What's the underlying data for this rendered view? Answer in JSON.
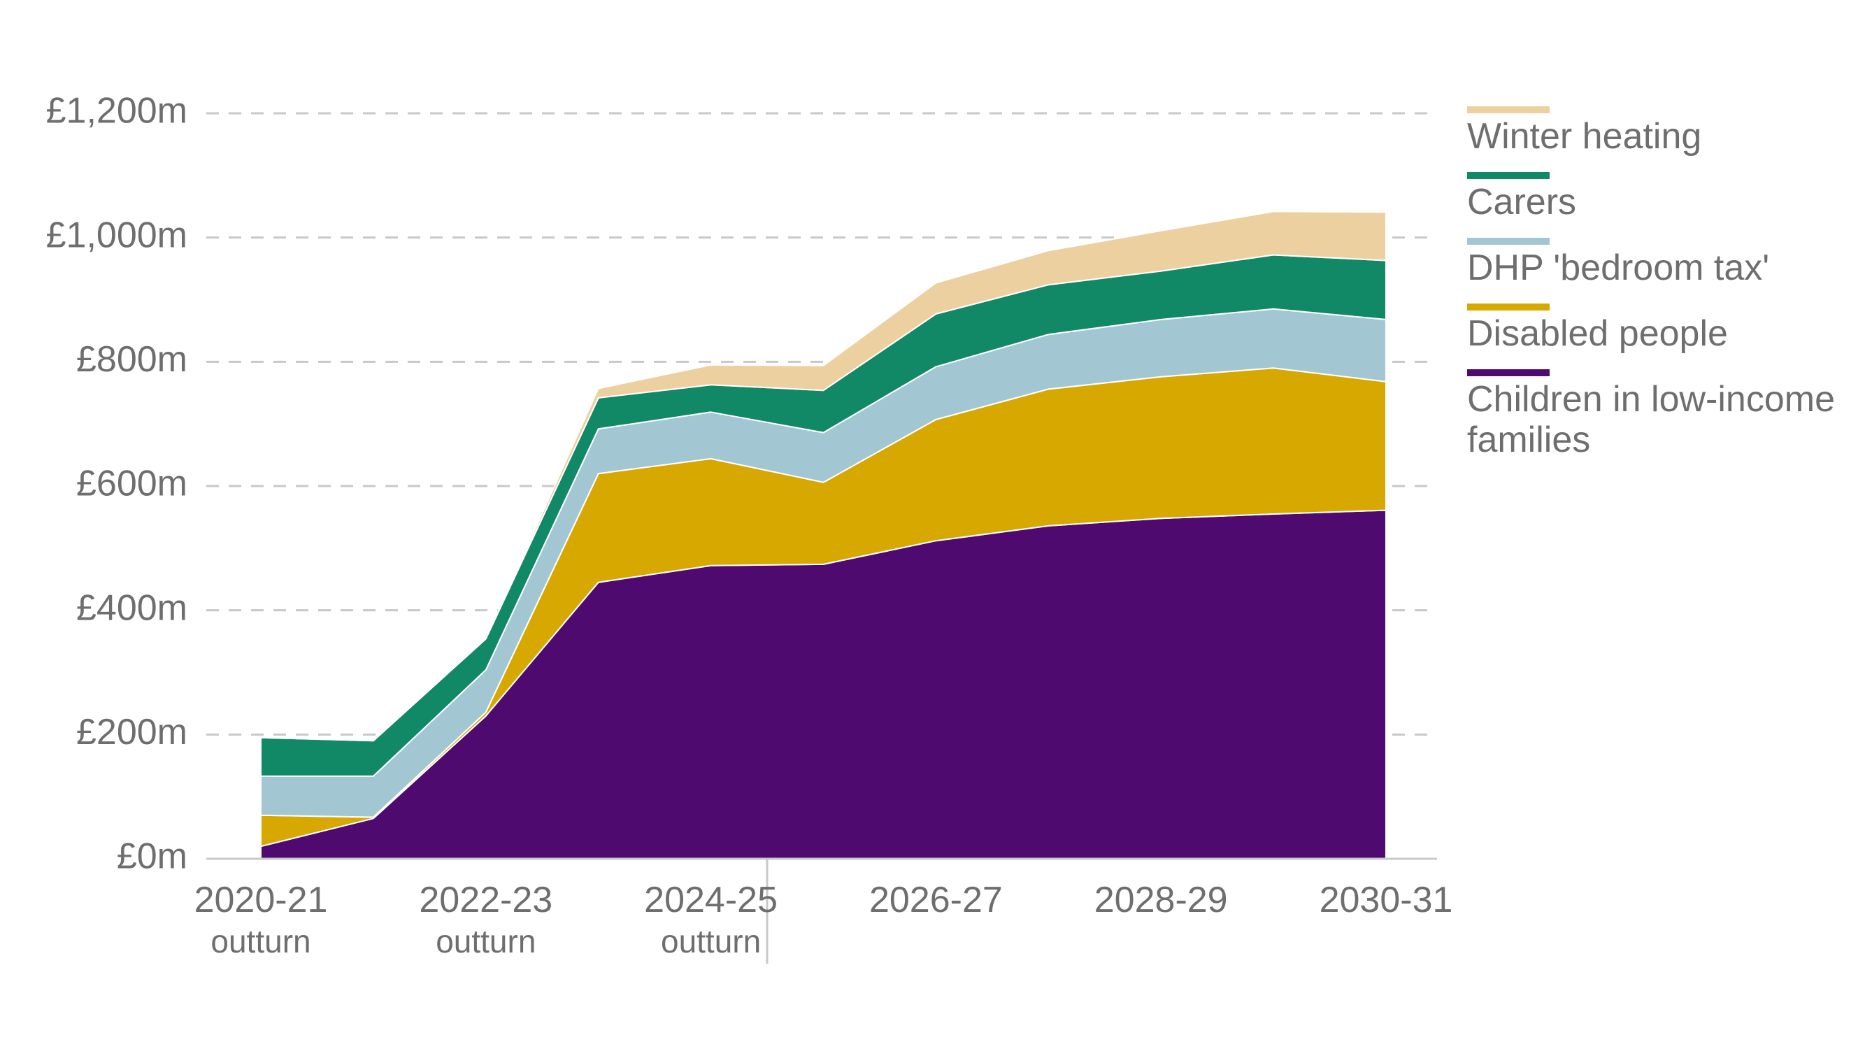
{
  "chart_data": {
    "type": "area",
    "stacked": true,
    "x": [
      "2020-21",
      "2021-22",
      "2022-23",
      "2023-24",
      "2024-25",
      "2025-26",
      "2026-27",
      "2027-28",
      "2028-29",
      "2029-30",
      "2030-31"
    ],
    "x_tick_labels": [
      {
        "index": 0,
        "label": "2020-21",
        "sub": "outturn"
      },
      {
        "index": 2,
        "label": "2022-23",
        "sub": "outturn"
      },
      {
        "index": 4,
        "label": "2024-25",
        "sub": "outturn"
      },
      {
        "index": 6,
        "label": "2026-27",
        "sub": ""
      },
      {
        "index": 8,
        "label": "2028-29",
        "sub": ""
      },
      {
        "index": 10,
        "label": "2030-31",
        "sub": ""
      }
    ],
    "outturn_divider_after": "2024-25",
    "y_ticks": [
      "£0m",
      "£200m",
      "£400m",
      "£600m",
      "£800m",
      "£1,000m",
      "£1,200m"
    ],
    "y_tick_values": [
      0,
      200,
      400,
      600,
      800,
      1000,
      1200
    ],
    "ylim": [
      0,
      1200
    ],
    "grid": "horizontal dashed",
    "legend_position": "right",
    "series": [
      {
        "name": "Children in low-income families",
        "color": "#4f0a70",
        "values": [
          20,
          65,
          230,
          445,
          472,
          474,
          512,
          536,
          548,
          555,
          561
        ]
      },
      {
        "name": "Disabled people",
        "color": "#d7a800",
        "values": [
          50,
          2,
          6,
          175,
          172,
          132,
          195,
          220,
          228,
          235,
          207
        ]
      },
      {
        "name": "DHP 'bedroom tax'",
        "color": "#a3c6d3",
        "values": [
          63,
          66,
          68,
          72,
          75,
          80,
          85,
          88,
          92,
          95,
          100
        ]
      },
      {
        "name": "Carers",
        "color": "#118866",
        "values": [
          62,
          57,
          50,
          50,
          44,
          68,
          85,
          80,
          78,
          87,
          95
        ]
      },
      {
        "name": "Winter heating",
        "color": "#ecd0a0",
        "values": [
          0,
          0,
          0,
          15,
          32,
          40,
          50,
          55,
          65,
          70,
          78
        ]
      }
    ]
  },
  "legend": [
    {
      "label": "Winter heating",
      "color": "#ecd0a0"
    },
    {
      "label": "Carers",
      "color": "#118866"
    },
    {
      "label": "DHP 'bedroom tax'",
      "color": "#a3c6d3"
    },
    {
      "label": "Disabled people",
      "color": "#d7a800"
    },
    {
      "label": "Children in low-income families",
      "color": "#4f0a70"
    }
  ]
}
